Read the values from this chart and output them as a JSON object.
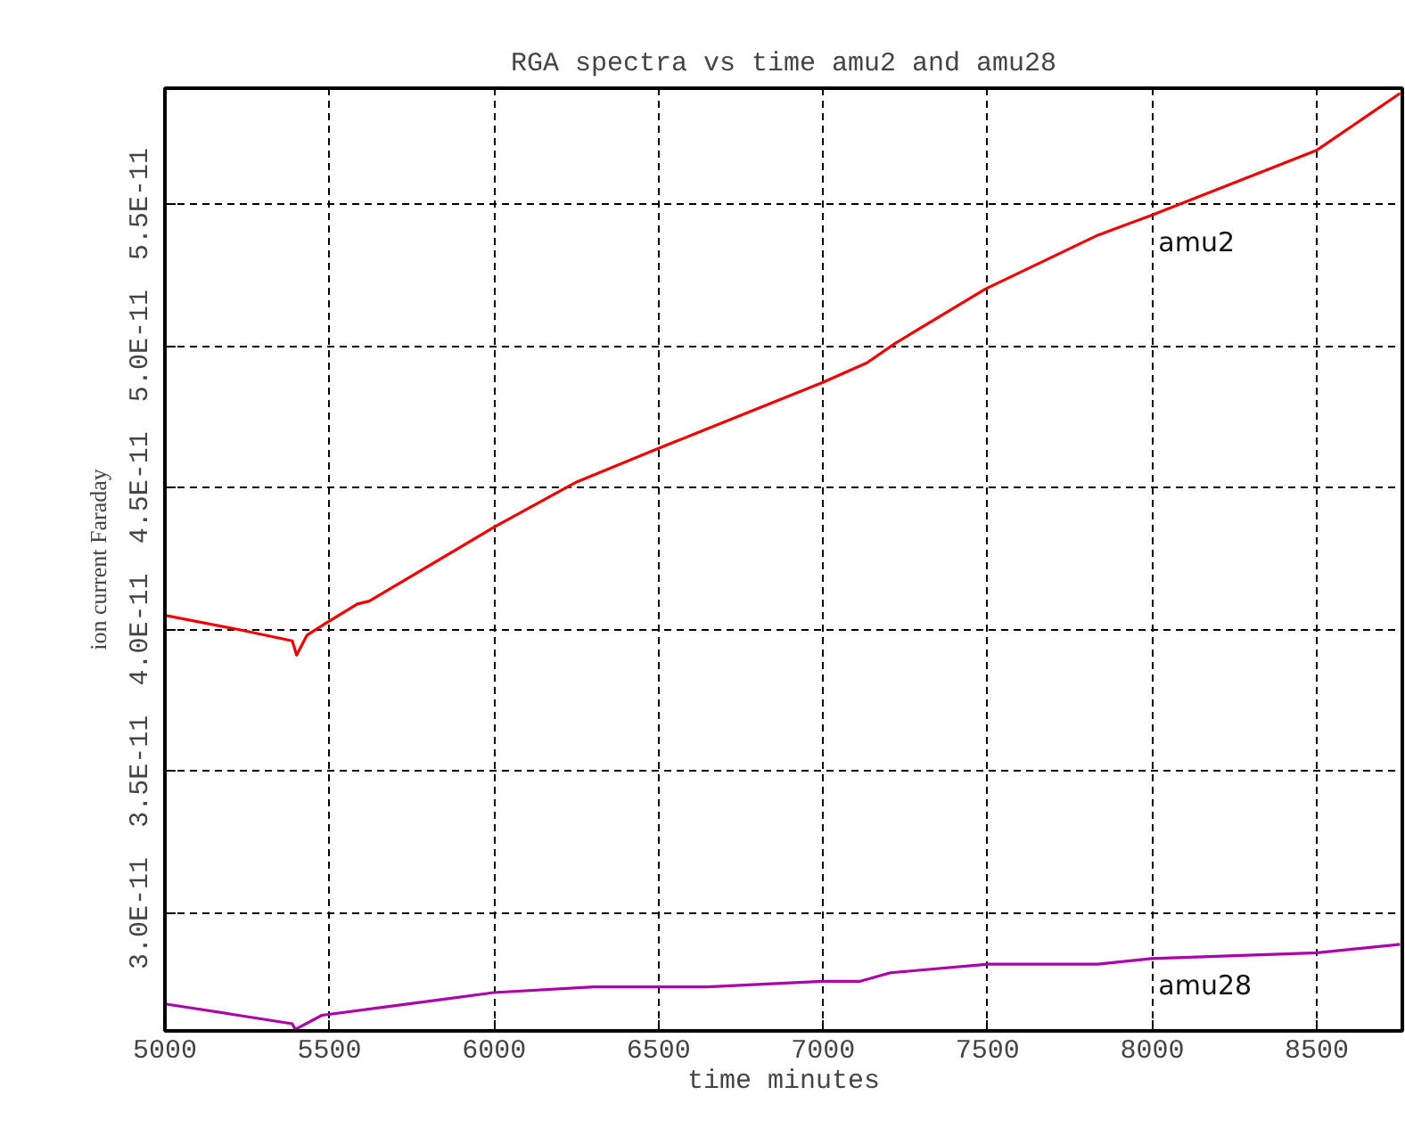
{
  "chart_data": {
    "type": "line",
    "title": "RGA spectra vs time amu2 and amu28",
    "xlabel": "time minutes",
    "ylabel": "ion current Faraday",
    "xlim": [
      5000,
      8760
    ],
    "ylim": [
      2.585e-11,
      5.908e-11
    ],
    "xticks": [
      5000,
      5500,
      6000,
      6500,
      7000,
      7500,
      8000,
      8500
    ],
    "yticks": [
      {
        "value": 3e-11,
        "label": "3.0E-11"
      },
      {
        "value": 3.5e-11,
        "label": "3.5E-11"
      },
      {
        "value": 4e-11,
        "label": "4.0E-11"
      },
      {
        "value": 4.5e-11,
        "label": "4.5E-11"
      },
      {
        "value": 5e-11,
        "label": "5.0E-11"
      },
      {
        "value": 5.5e-11,
        "label": "5.5E-11"
      }
    ],
    "grid": true,
    "marker": "none",
    "line_style": "solid",
    "series": [
      {
        "name": "amu2",
        "color": "#ee0000",
        "x": [
          5000,
          5223,
          5387,
          5400,
          5432,
          5486,
          5585,
          5621,
          5999,
          6251,
          6503,
          6611,
          6997,
          7133,
          7221,
          7493,
          7835,
          7997,
          8501,
          8753
        ],
        "values": [
          4.05e-11,
          4e-11,
          3.96e-11,
          3.91e-11,
          3.98e-11,
          4.02e-11,
          4.09e-11,
          4.1e-11,
          4.36e-11,
          4.52e-11,
          4.64e-11,
          4.69e-11,
          4.87e-11,
          4.94e-11,
          5.01e-11,
          5.2e-11,
          5.39e-11,
          5.46e-11,
          5.69e-11,
          5.89e-11
        ]
      },
      {
        "name": "amu28",
        "color": "#aa00aa",
        "x": [
          5000,
          5223,
          5387,
          5396,
          5477,
          5675,
          5999,
          6303,
          6647,
          6998,
          7113,
          7205,
          7502,
          7835,
          7997,
          8501,
          8753
        ],
        "values": [
          2.68e-11,
          2.64e-11,
          2.61e-11,
          2.59e-11,
          2.64e-11,
          2.67e-11,
          2.72e-11,
          2.74e-11,
          2.74e-11,
          2.76e-11,
          2.76e-11,
          2.79e-11,
          2.82e-11,
          2.82e-11,
          2.84e-11,
          2.86e-11,
          2.89e-11
        ]
      }
    ]
  }
}
